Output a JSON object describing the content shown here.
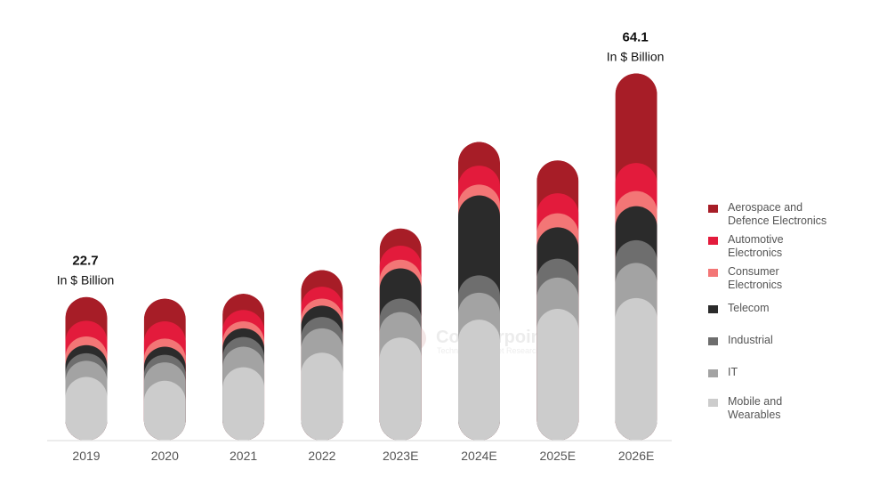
{
  "chart_data": {
    "type": "bar",
    "stacked": true,
    "categories": [
      "2019",
      "2020",
      "2021",
      "2022",
      "2023E",
      "2024E",
      "2025E",
      "2026E"
    ],
    "series": [
      {
        "name": "Mobile and\nWearables",
        "color": "#cccccc",
        "values": [
          7.9,
          7.2,
          9.7,
          12.4,
          15.2,
          18.5,
          20.5,
          22.5
        ]
      },
      {
        "name": "IT",
        "color": "#a3a3a3",
        "values": [
          3.0,
          3.4,
          3.8,
          4.5,
          4.7,
          5.0,
          5.8,
          6.5
        ]
      },
      {
        "name": "Industrial",
        "color": "#6e6e6e",
        "values": [
          1.4,
          1.4,
          1.8,
          2.1,
          2.5,
          3.2,
          3.5,
          4.2
        ]
      },
      {
        "name": "Telecom",
        "color": "#2b2b2b",
        "values": [
          1.5,
          1.5,
          1.6,
          2.1,
          5.6,
          14.8,
          5.8,
          6.3
        ]
      },
      {
        "name": "Consumer\nElectronics",
        "color": "#f37676",
        "values": [
          1.6,
          1.5,
          1.3,
          1.3,
          1.6,
          2.0,
          2.6,
          2.8
        ]
      },
      {
        "name": "Automotive\nElectronics",
        "color": "#e31b3c",
        "values": [
          2.9,
          3.2,
          2.1,
          2.2,
          2.6,
          3.5,
          3.7,
          5.2
        ]
      },
      {
        "name": "Aerospace and\nDefence Electronics",
        "color": "#a71d27",
        "values": [
          4.4,
          4.2,
          3.0,
          3.1,
          3.2,
          4.4,
          6.1,
          16.6
        ]
      }
    ],
    "ylim": [
      0,
      70
    ],
    "grid": false,
    "legend_position": "right",
    "annotations": [
      {
        "category": "2019",
        "value": "22.7",
        "unit": "In $ Billion"
      },
      {
        "category": "2026E",
        "value": "64.1",
        "unit": "In $ Billion"
      }
    ],
    "title": "",
    "xlabel": "",
    "ylabel": ""
  },
  "watermark": {
    "brand": "Counterpoint",
    "tagline": "Technology Market Research"
  },
  "colors": {
    "axis_line": "#e6e6e6",
    "tick_text": "#555555",
    "annotation_text": "#111111"
  }
}
